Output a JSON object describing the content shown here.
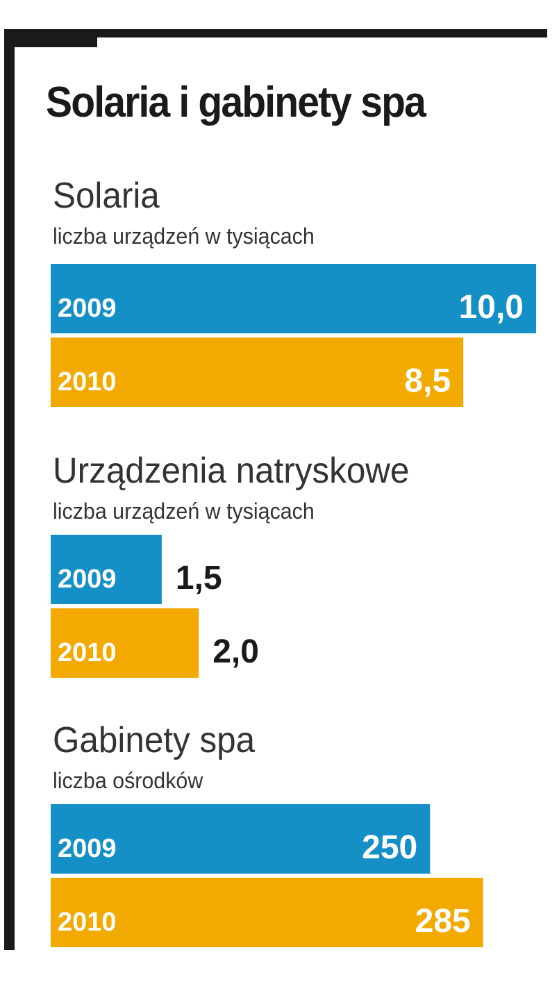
{
  "title": "Solaria i gabinety spa",
  "colors": {
    "frame": "#1a1a1a",
    "bar_2009": "#1590c6",
    "bar_2010": "#f2a900",
    "label_inside": "#ffffff",
    "label_outside": "#1a1a1a"
  },
  "chart_data": [
    {
      "type": "bar",
      "orientation": "horizontal",
      "title": "Solaria",
      "subtitle": "liczba urządzeń w tysiącach",
      "categories": [
        "2009",
        "2010"
      ],
      "values": [
        10.0,
        8.5
      ],
      "value_labels": [
        "10,0",
        "8,5"
      ],
      "value_label_position": "inside-end"
    },
    {
      "type": "bar",
      "orientation": "horizontal",
      "title": "Urządzenia natryskowe",
      "subtitle": "liczba urządzeń w tysiącach",
      "categories": [
        "2009",
        "2010"
      ],
      "values": [
        1.5,
        2.0
      ],
      "value_labels": [
        "1,5",
        "2,0"
      ],
      "value_label_position": "outside-end"
    },
    {
      "type": "bar",
      "orientation": "horizontal",
      "title": "Gabinety spa",
      "subtitle": "liczba ośrodków",
      "categories": [
        "2009",
        "2010"
      ],
      "values": [
        250,
        285
      ],
      "value_labels": [
        "250",
        "285"
      ],
      "value_label_position": "inside-end"
    }
  ]
}
